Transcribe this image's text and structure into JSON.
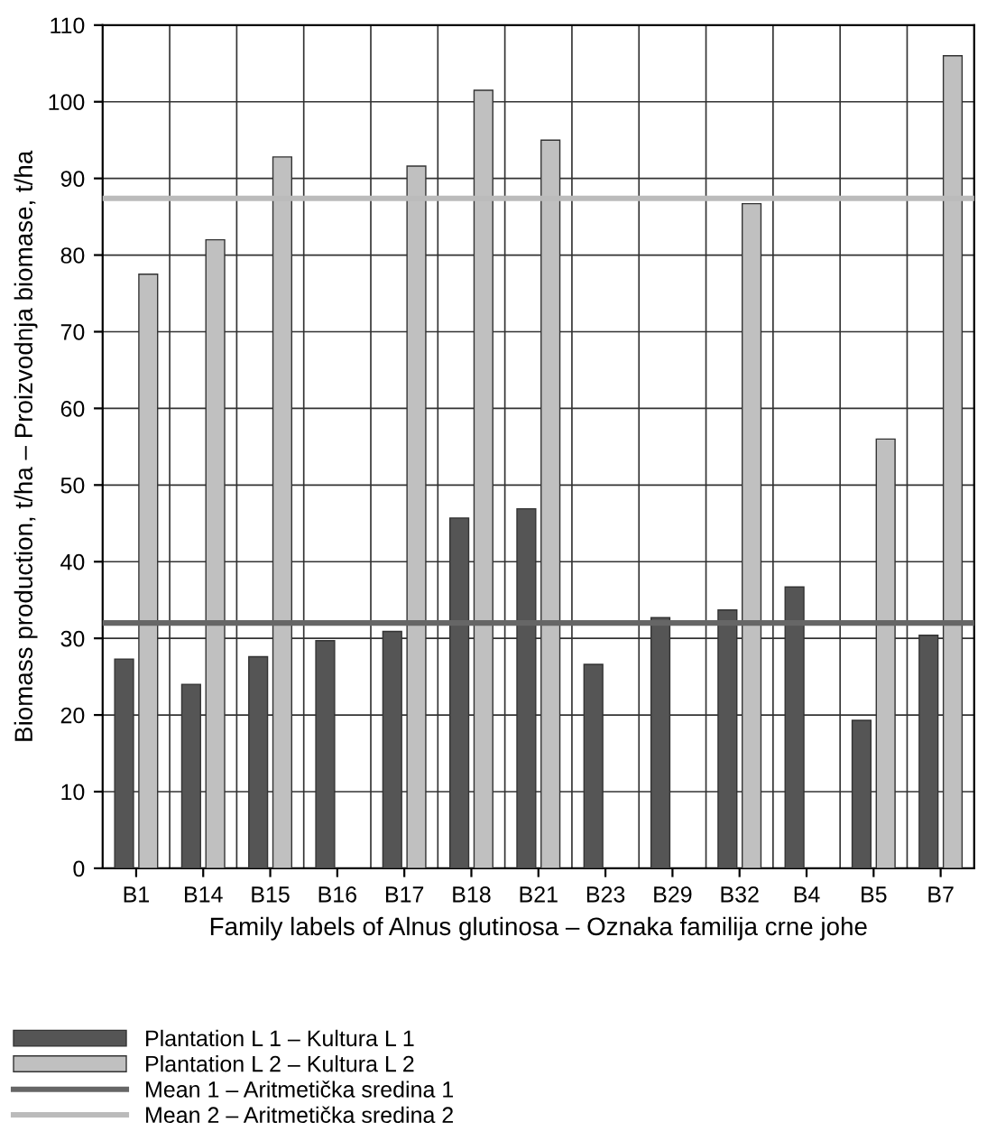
{
  "chart_data": {
    "type": "bar",
    "xlabel": "Family labels of Alnus glutinosa – Oznaka familija crne johe",
    "ylabel": "Biomass production, t/ha – Proizvodnja biomase, t/ha",
    "categories": [
      "B1",
      "B14",
      "B15",
      "B16",
      "B17",
      "B18",
      "B21",
      "B23",
      "B29",
      "B32",
      "B4",
      "B5",
      "B7"
    ],
    "series": [
      {
        "name": "Plantation L 1 – Kultura L 1",
        "color": "#555555",
        "values": [
          27.3,
          24.0,
          27.6,
          29.7,
          30.9,
          45.7,
          46.9,
          26.6,
          32.7,
          33.7,
          36.7,
          19.3,
          30.4
        ]
      },
      {
        "name": "Plantation L 2 – Kultura L 2",
        "color": "#c0c0c0",
        "values": [
          77.5,
          82.0,
          92.8,
          null,
          91.6,
          101.5,
          95.0,
          null,
          null,
          86.7,
          null,
          56.0,
          106.0
        ]
      }
    ],
    "ref_lines": [
      {
        "axis": "y",
        "value": 32.0,
        "label": "Mean 1 – Aritmetička sredina 1",
        "color": "#666666"
      },
      {
        "axis": "y",
        "value": 87.4,
        "label": "Mean 2 – Aritmetička sredina 2",
        "color": "#bbbbbb"
      }
    ],
    "ylim": [
      0,
      110
    ],
    "yticks": [
      0,
      10,
      20,
      30,
      40,
      50,
      60,
      70,
      80,
      90,
      100,
      110
    ],
    "grid": true,
    "legend": "bottom left"
  }
}
